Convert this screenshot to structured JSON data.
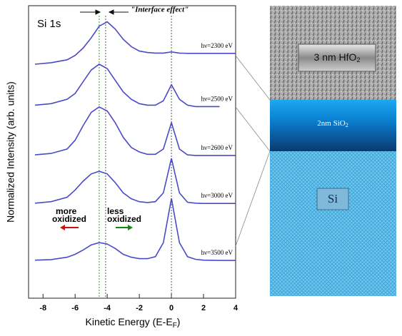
{
  "chart_data": {
    "type": "line",
    "title": "Si 1s",
    "xlabel": {
      "text": "Kinetic Energy (E-E",
      "sub": "F",
      "end": ")"
    },
    "ylabel": "Normalized Intensity (arb. units)",
    "annotations": {
      "interface": "\"Interface effect\"",
      "more": "more",
      "oxidized_left": "oxidized",
      "less": "less",
      "oxidized_right": "oxidized"
    },
    "reference_lines": [
      -4.5,
      -4.1,
      0
    ],
    "xlim": [
      -8.9,
      4
    ],
    "xticks": [
      -8,
      -6,
      -4,
      -2,
      0,
      2,
      4
    ],
    "ylim": [
      0,
      10
    ],
    "x": [
      -8.5,
      -7.5,
      -6.5,
      -6,
      -5.5,
      -5,
      -4.5,
      -4,
      -3.5,
      -3,
      -2.5,
      -2,
      -1.5,
      -1,
      -0.5,
      0,
      0.5,
      1,
      1.5,
      2,
      3,
      4
    ],
    "series": [
      {
        "name": "hν=2300 eV",
        "color": "#4a4ac8",
        "values": [
          8.0,
          8.05,
          8.15,
          8.3,
          8.55,
          8.9,
          9.3,
          9.45,
          9.2,
          8.85,
          8.6,
          8.45,
          8.4,
          8.38,
          8.38,
          8.42,
          8.38,
          8.37,
          8.37,
          8.37,
          8.37,
          8.37
        ]
      },
      {
        "name": "hν=2500 eV",
        "color": "#4a4ac8",
        "values": [
          6.6,
          6.65,
          6.8,
          7.0,
          7.4,
          7.8,
          8.0,
          7.85,
          7.45,
          7.05,
          6.8,
          6.65,
          6.6,
          6.6,
          6.75,
          7.3,
          6.8,
          6.6,
          6.55,
          6.55,
          6.55,
          null
        ]
      },
      {
        "name": "hν=2600 eV",
        "color": "#4a4ac8",
        "values": [
          4.9,
          4.95,
          5.1,
          5.4,
          5.9,
          6.35,
          6.54,
          6.4,
          6.0,
          5.5,
          5.15,
          5.0,
          4.92,
          4.92,
          5.1,
          6.0,
          5.1,
          4.9,
          4.88,
          4.88,
          4.88,
          4.88
        ]
      },
      {
        "name": "hν=3000 eV",
        "color": "#4a4ac8",
        "values": [
          3.25,
          3.3,
          3.45,
          3.7,
          4.0,
          4.25,
          4.34,
          4.25,
          3.95,
          3.6,
          3.4,
          3.3,
          3.27,
          3.3,
          3.6,
          4.78,
          3.6,
          3.28,
          3.25,
          3.24,
          3.24,
          3.24
        ]
      },
      {
        "name": "hν=3500 eV",
        "color": "#4a4ac8",
        "values": [
          1.3,
          1.32,
          1.4,
          1.5,
          1.65,
          1.82,
          1.9,
          1.85,
          1.7,
          1.5,
          1.4,
          1.35,
          1.35,
          1.42,
          1.9,
          3.41,
          1.9,
          1.42,
          1.33,
          1.3,
          1.29,
          1.29
        ]
      }
    ]
  },
  "schematic": {
    "hfo2": {
      "text": "3 nm HfO",
      "sub": "2"
    },
    "sio2": {
      "text": "2nm SiO",
      "sub": "2"
    },
    "si": "Si"
  }
}
